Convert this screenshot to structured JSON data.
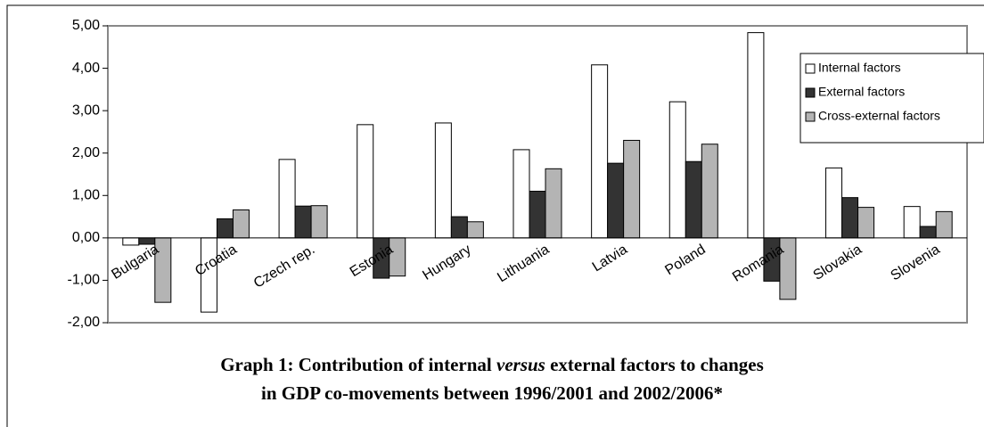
{
  "chart_data": {
    "type": "bar",
    "title": [
      "Graph 1: Contribution of internal ",
      "versus",
      " external factors to changes",
      "in GDP co-movements between 1996/2001 and 2002/2006*"
    ],
    "categories": [
      "Bulgaria",
      "Croatia",
      "Czech rep.",
      "Estonia",
      "Hungary",
      "Lithuania",
      "Latvia",
      "Poland",
      "Romania",
      "Slovakia",
      "Slovenia"
    ],
    "series": [
      {
        "name": "Internal factors",
        "color": "#ffffff",
        "values": [
          -0.17,
          -1.75,
          1.85,
          2.67,
          2.71,
          2.08,
          4.08,
          3.21,
          4.84,
          1.65,
          0.74
        ]
      },
      {
        "name": "External factors",
        "color": "#333333",
        "values": [
          -0.15,
          0.45,
          0.75,
          -0.95,
          0.5,
          1.1,
          1.76,
          1.8,
          -1.02,
          0.95,
          0.27
        ]
      },
      {
        "name": "Cross-external factors",
        "color": "#b4b4b4",
        "values": [
          -1.52,
          0.66,
          0.76,
          -0.9,
          0.38,
          1.63,
          2.3,
          2.21,
          -1.45,
          0.72,
          0.62
        ]
      }
    ],
    "ylim": [
      -2,
      5
    ],
    "yticks": [
      {
        "value": -2,
        "label": "-2,00"
      },
      {
        "value": -1,
        "label": "-1,00"
      },
      {
        "value": 0,
        "label": "0,00"
      },
      {
        "value": 1,
        "label": "1,00"
      },
      {
        "value": 2,
        "label": "2,00"
      },
      {
        "value": 3,
        "label": "3,00"
      },
      {
        "value": 4,
        "label": "4,00"
      },
      {
        "value": 5,
        "label": "5,00"
      }
    ],
    "legend": "right"
  }
}
